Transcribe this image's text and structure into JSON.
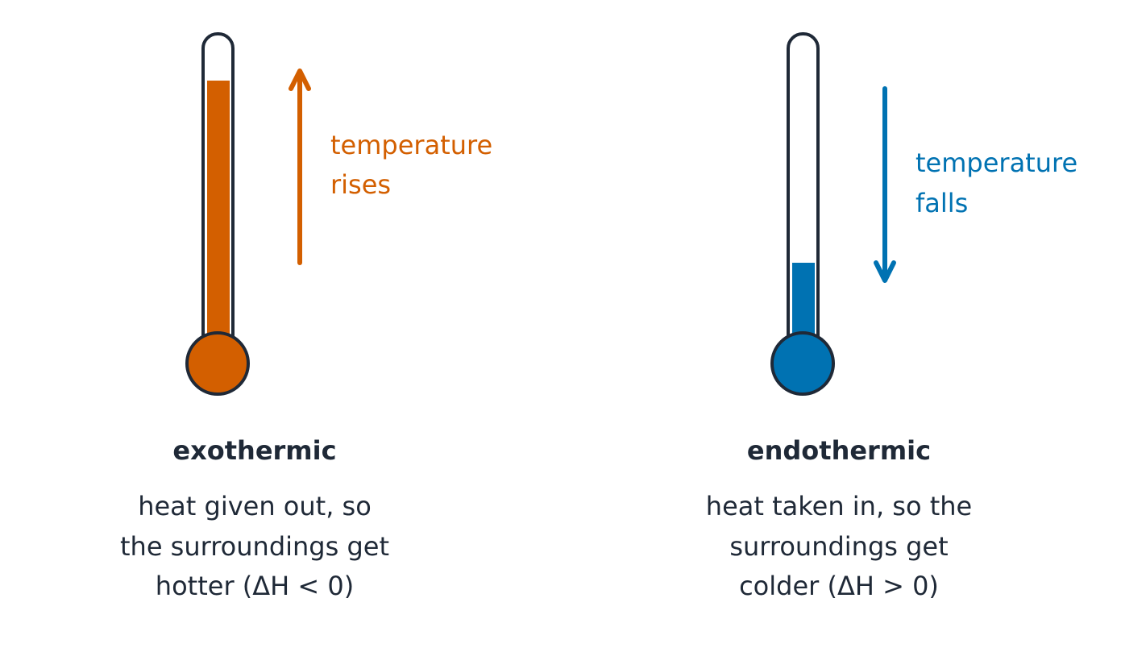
{
  "panels": [
    {
      "title": "exothermic",
      "label": [
        "temperature",
        "rises"
      ],
      "description": [
        "heat given out, so",
        "the surroundings get",
        "hotter (ΔH < 0)"
      ]
    },
    {
      "title": "endothermic",
      "label": [
        "temperature",
        "falls"
      ],
      "description": [
        "heat taken in, so the",
        "surroundings get",
        "colder (ΔH > 0)"
      ]
    }
  ]
}
